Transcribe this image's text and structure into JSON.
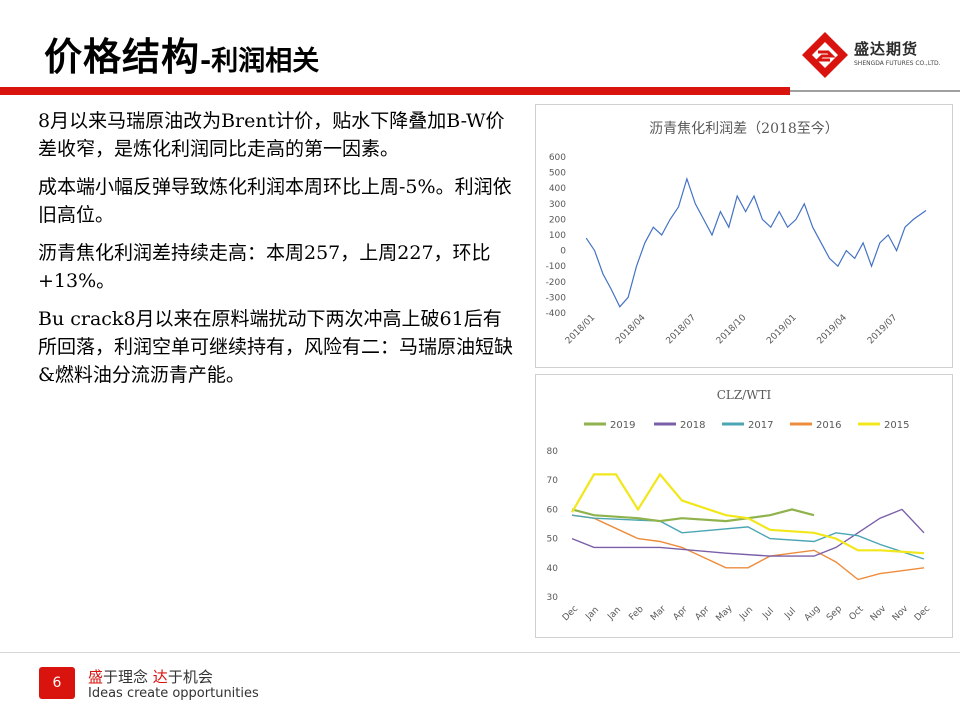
{
  "header": {
    "title_main": "价格结构",
    "title_sub": "-利润相关",
    "logo_text": "盛达期货",
    "logo_sub": "SHENGDA FUTURES CO.,LTD."
  },
  "text": {
    "paragraphs": [
      "8月以来马瑞原油改为Brent计价，贴水下降叠加B-W价差收窄，是炼化利润同比走高的第一因素。",
      "成本端小幅反弹导致炼化利润本周环比上周-5%。利润依旧高位。",
      "沥青焦化利润差持续走高：本周257，上周227，环比+13%。",
      "Bu crack8月以来在原料端扰动下两次冲高上破61后有所回落，利润空单可继续持有，风险有二：马瑞原油短缺&燃料油分流沥青产能。"
    ]
  },
  "footer": {
    "page_number": "6",
    "slogan_cn_a": "盛",
    "slogan_cn_b": "于理念 ",
    "slogan_cn_c": "达",
    "slogan_cn_d": "于机会",
    "slogan_en": "Ideas create opportunities"
  },
  "colors": {
    "brand_red": "#d9140f",
    "line_blue": "#4472c4",
    "s2019": "#8fb24d",
    "s2018": "#7a5fa8",
    "s2017": "#4ba6b4",
    "s2016": "#ed8c3c",
    "s2015": "#f2e71a"
  },
  "chart_data": [
    {
      "type": "line",
      "title": "沥青焦化利润差（2018至今）",
      "xlabel": "",
      "ylabel": "",
      "ylim": [
        -400,
        600
      ],
      "yticks": [
        "600",
        "500",
        "400",
        "300",
        "200",
        "100",
        "0",
        "-100",
        "-200",
        "-300",
        "-400"
      ],
      "x_tick_labels": [
        "2018/01",
        "2018/04",
        "2018/07",
        "2018/10",
        "2019/01",
        "2019/04",
        "2019/07"
      ],
      "grid": false,
      "legend": "none",
      "series": [
        {
          "values": [
            {
              "x": "2018-01",
              "y": 80
            },
            {
              "x": "2018-01",
              "y": 0
            },
            {
              "x": "2018-02",
              "y": -150
            },
            {
              "x": "2018-02",
              "y": -250
            },
            {
              "x": "2018-03",
              "y": -360
            },
            {
              "x": "2018-03",
              "y": -300
            },
            {
              "x": "2018-04",
              "y": -100
            },
            {
              "x": "2018-04",
              "y": 50
            },
            {
              "x": "2018-05",
              "y": 150
            },
            {
              "x": "2018-05",
              "y": 100
            },
            {
              "x": "2018-06",
              "y": 200
            },
            {
              "x": "2018-06",
              "y": 280
            },
            {
              "x": "2018-07",
              "y": 460
            },
            {
              "x": "2018-07",
              "y": 300
            },
            {
              "x": "2018-08",
              "y": 200
            },
            {
              "x": "2018-08",
              "y": 100
            },
            {
              "x": "2018-09",
              "y": 250
            },
            {
              "x": "2018-09",
              "y": 150
            },
            {
              "x": "2018-10",
              "y": 350
            },
            {
              "x": "2018-10",
              "y": 250
            },
            {
              "x": "2018-11",
              "y": 350
            },
            {
              "x": "2018-11",
              "y": 200
            },
            {
              "x": "2018-12",
              "y": 150
            },
            {
              "x": "2018-12",
              "y": 250
            },
            {
              "x": "2019-01",
              "y": 150
            },
            {
              "x": "2019-01",
              "y": 200
            },
            {
              "x": "2019-02",
              "y": 300
            },
            {
              "x": "2019-02",
              "y": 150
            },
            {
              "x": "2019-03",
              "y": 50
            },
            {
              "x": "2019-03",
              "y": -50
            },
            {
              "x": "2019-04",
              "y": -100
            },
            {
              "x": "2019-04",
              "y": 0
            },
            {
              "x": "2019-05",
              "y": -50
            },
            {
              "x": "2019-05",
              "y": 50
            },
            {
              "x": "2019-06",
              "y": -100
            },
            {
              "x": "2019-06",
              "y": 50
            },
            {
              "x": "2019-07",
              "y": 100
            },
            {
              "x": "2019-07",
              "y": 0
            },
            {
              "x": "2019-08",
              "y": 150
            },
            {
              "x": "2019-08",
              "y": 200
            },
            {
              "x": "2019-09",
              "y": 257
            }
          ]
        }
      ]
    },
    {
      "type": "line",
      "title": "CLZ/WTI",
      "xlabel": "",
      "ylabel": "",
      "ylim": [
        30,
        80
      ],
      "yticks": [
        "80",
        "70",
        "60",
        "50",
        "40",
        "30"
      ],
      "x_tick_labels": [
        "Dec",
        "Jan",
        "Jan",
        "Feb",
        "Mar",
        "Apr",
        "Apr",
        "May",
        "Jun",
        "Jul",
        "Jul",
        "Aug",
        "Sep",
        "Oct",
        "Nov",
        "Nov",
        "Dec"
      ],
      "grid": false,
      "legend": "top",
      "series": [
        {
          "name": "2019",
          "values": [
            {
              "x": "Dec",
              "y": 60
            },
            {
              "x": "Jan",
              "y": 58
            },
            {
              "x": "Feb",
              "y": 57
            },
            {
              "x": "Mar",
              "y": 56
            },
            {
              "x": "Apr",
              "y": 57
            },
            {
              "x": "May",
              "y": 56
            },
            {
              "x": "Jun",
              "y": 57
            },
            {
              "x": "Jul",
              "y": 58
            },
            {
              "x": "Jul",
              "y": 60
            },
            {
              "x": "Aug",
              "y": 58
            }
          ]
        },
        {
          "name": "2018",
          "values": [
            {
              "x": "Dec",
              "y": 50
            },
            {
              "x": "Jan",
              "y": 47
            },
            {
              "x": "Mar",
              "y": 47
            },
            {
              "x": "May",
              "y": 45
            },
            {
              "x": "Jul",
              "y": 44
            },
            {
              "x": "Aug",
              "y": 44
            },
            {
              "x": "Sep",
              "y": 47
            },
            {
              "x": "Oct",
              "y": 52
            },
            {
              "x": "Nov",
              "y": 57
            },
            {
              "x": "Nov",
              "y": 60
            },
            {
              "x": "Dec",
              "y": 52
            }
          ]
        },
        {
          "name": "2017",
          "values": [
            {
              "x": "Dec",
              "y": 58
            },
            {
              "x": "Jan",
              "y": 57
            },
            {
              "x": "Mar",
              "y": 56
            },
            {
              "x": "Apr",
              "y": 52
            },
            {
              "x": "Jun",
              "y": 54
            },
            {
              "x": "Jul",
              "y": 50
            },
            {
              "x": "Aug",
              "y": 49
            },
            {
              "x": "Sep",
              "y": 52
            },
            {
              "x": "Oct",
              "y": 51
            },
            {
              "x": "Nov",
              "y": 48
            },
            {
              "x": "Dec",
              "y": 43
            }
          ]
        },
        {
          "name": "2016",
          "values": [
            {
              "x": "Dec",
              "y": 58
            },
            {
              "x": "Jan",
              "y": 57
            },
            {
              "x": "Feb",
              "y": 50
            },
            {
              "x": "Mar",
              "y": 49
            },
            {
              "x": "Apr",
              "y": 47
            },
            {
              "x": "May",
              "y": 40
            },
            {
              "x": "Jun",
              "y": 40
            },
            {
              "x": "Jul",
              "y": 44
            },
            {
              "x": "Aug",
              "y": 46
            },
            {
              "x": "Sep",
              "y": 42
            },
            {
              "x": "Oct",
              "y": 36
            },
            {
              "x": "Nov",
              "y": 38
            },
            {
              "x": "Dec",
              "y": 40
            }
          ]
        },
        {
          "name": "2015",
          "values": [
            {
              "x": "Dec",
              "y": 59
            },
            {
              "x": "Jan",
              "y": 72
            },
            {
              "x": "Jan",
              "y": 72
            },
            {
              "x": "Feb",
              "y": 60
            },
            {
              "x": "Mar",
              "y": 72
            },
            {
              "x": "Apr",
              "y": 63
            },
            {
              "x": "May",
              "y": 58
            },
            {
              "x": "Jun",
              "y": 57
            },
            {
              "x": "Jul",
              "y": 53
            },
            {
              "x": "Aug",
              "y": 52
            },
            {
              "x": "Sep",
              "y": 50
            },
            {
              "x": "Oct",
              "y": 46
            },
            {
              "x": "Nov",
              "y": 46
            },
            {
              "x": "Dec",
              "y": 45
            }
          ]
        }
      ]
    }
  ]
}
